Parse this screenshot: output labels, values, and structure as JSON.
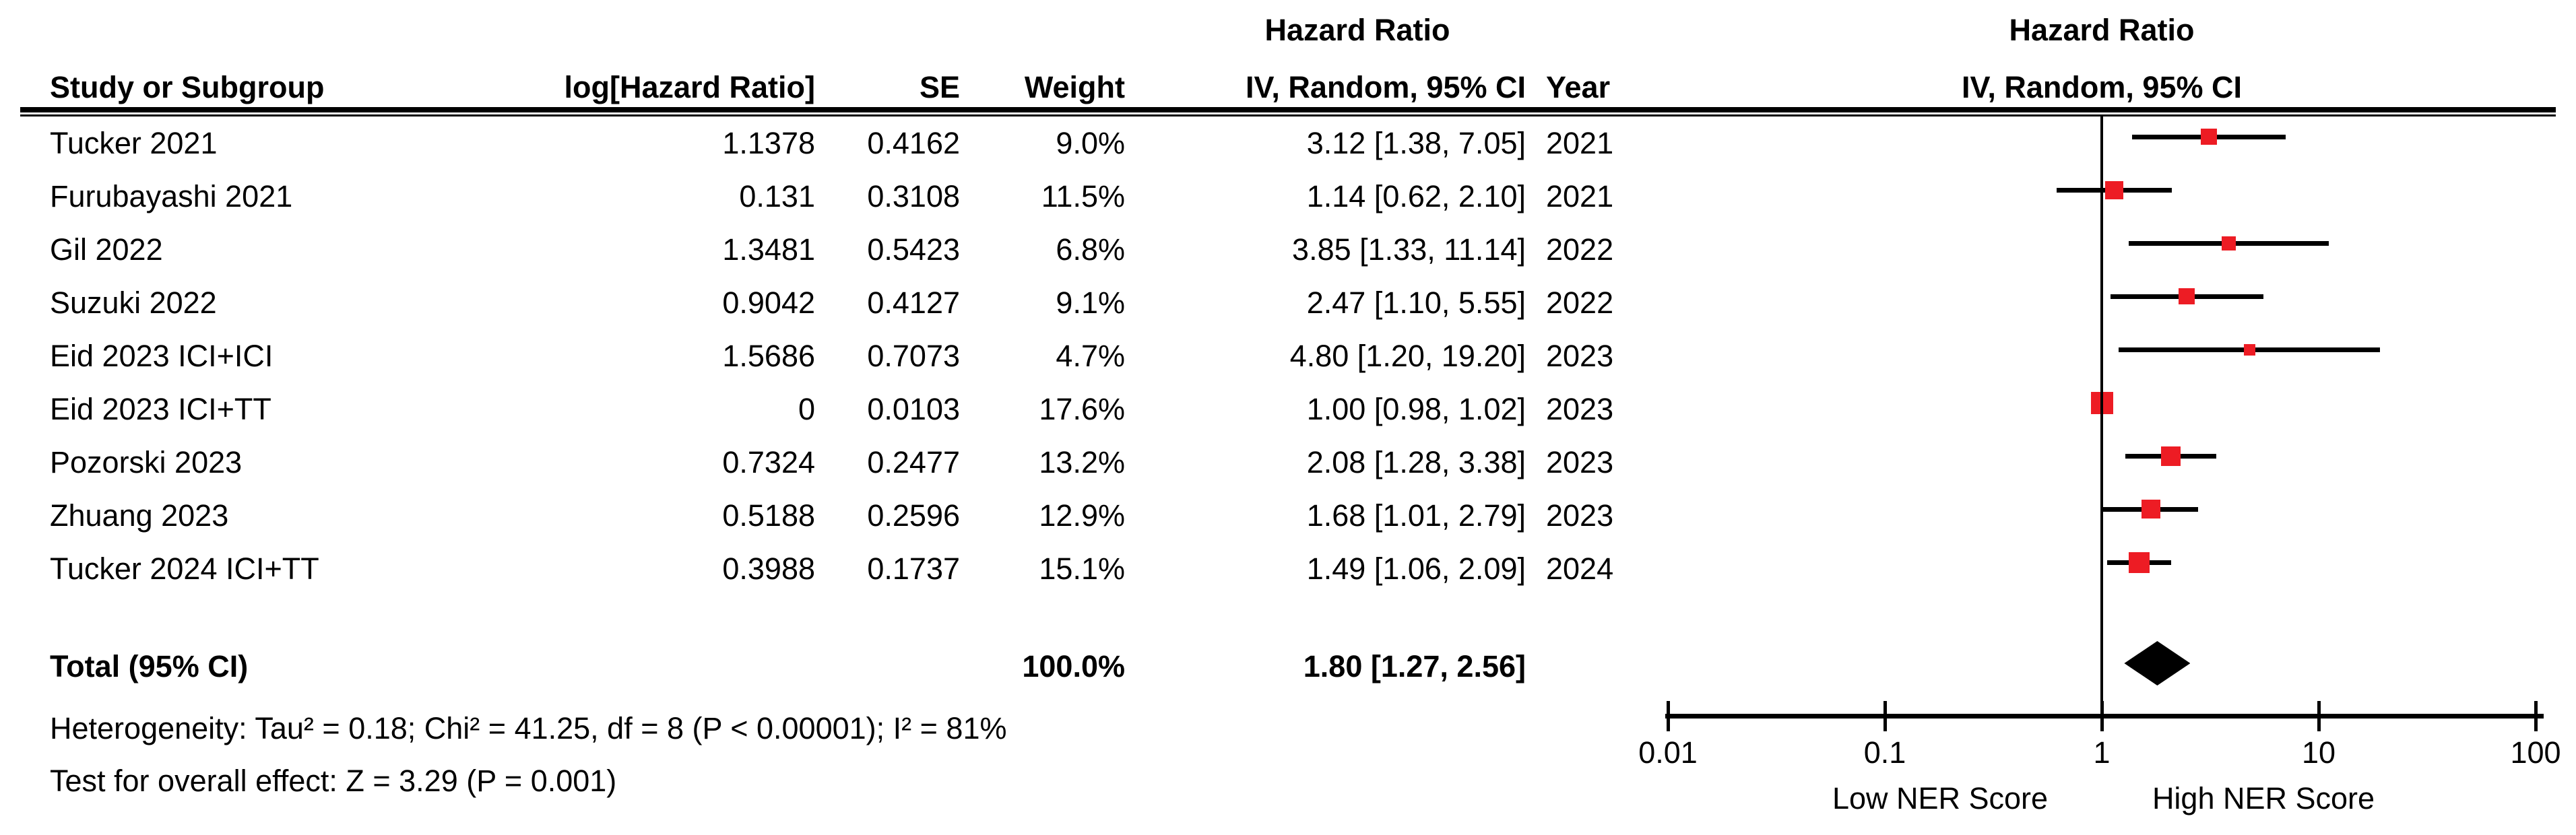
{
  "colors": {
    "marker": "#ED1C24",
    "line": "#000000",
    "diamond": "#000000"
  },
  "header": {
    "effect_title_left": "Hazard Ratio",
    "effect_title_right": "Hazard Ratio",
    "col_study": "Study or Subgroup",
    "col_log_hr": "log[Hazard Ratio]",
    "col_se": "SE",
    "col_weight": "Weight",
    "col_ci": "IV, Random, 95% CI",
    "col_year": "Year",
    "col_ci_right": "IV, Random, 95% CI"
  },
  "total": {
    "label": "Total (95% CI)",
    "weight": "100.0%",
    "ci_text": "1.80 [1.27, 2.56]",
    "hr": 1.8,
    "ci_low": 1.27,
    "ci_high": 2.56
  },
  "footer": {
    "heterogeneity": "Heterogeneity: Tau² = 0.18; Chi² = 41.25, df = 8 (P < 0.00001); I² = 81%",
    "overall_effect": "Test for overall effect: Z = 3.29 (P = 0.001)"
  },
  "axis": {
    "left_label": "Low NER Score",
    "right_label": "High NER Score"
  },
  "chart_data": {
    "type": "forest",
    "title": "Hazard Ratio",
    "method": "IV, Random, 95% CI",
    "xscale": "log10",
    "xlim": [
      0.01,
      100
    ],
    "x_ticks": [
      "0.01",
      "0.1",
      "1",
      "10",
      "100"
    ],
    "axis_labels": {
      "left": "Low NER Score",
      "right": "High NER Score"
    },
    "studies": [
      {
        "name": "Tucker 2021",
        "log_hr": "1.1378",
        "se": "0.4162",
        "weight": "9.0%",
        "ci_text": "3.12 [1.38, 7.05]",
        "year": "2021",
        "hr": 3.12,
        "ci_low": 1.38,
        "ci_high": 7.05,
        "weight_pct": 9.0
      },
      {
        "name": "Furubayashi 2021",
        "log_hr": "0.131",
        "se": "0.3108",
        "weight": "11.5%",
        "ci_text": "1.14 [0.62, 2.10]",
        "year": "2021",
        "hr": 1.14,
        "ci_low": 0.62,
        "ci_high": 2.1,
        "weight_pct": 11.5
      },
      {
        "name": "Gil 2022",
        "log_hr": "1.3481",
        "se": "0.5423",
        "weight": "6.8%",
        "ci_text": "3.85 [1.33, 11.14]",
        "year": "2022",
        "hr": 3.85,
        "ci_low": 1.33,
        "ci_high": 11.14,
        "weight_pct": 6.8
      },
      {
        "name": "Suzuki 2022",
        "log_hr": "0.9042",
        "se": "0.4127",
        "weight": "9.1%",
        "ci_text": "2.47 [1.10, 5.55]",
        "year": "2022",
        "hr": 2.47,
        "ci_low": 1.1,
        "ci_high": 5.55,
        "weight_pct": 9.1
      },
      {
        "name": "Eid 2023 ICI+ICI",
        "log_hr": "1.5686",
        "se": "0.7073",
        "weight": "4.7%",
        "ci_text": "4.80 [1.20, 19.20]",
        "year": "2023",
        "hr": 4.8,
        "ci_low": 1.2,
        "ci_high": 19.2,
        "weight_pct": 4.7
      },
      {
        "name": "Eid 2023 ICI+TT",
        "log_hr": "0",
        "se": "0.0103",
        "weight": "17.6%",
        "ci_text": "1.00 [0.98, 1.02]",
        "year": "2023",
        "hr": 1.0,
        "ci_low": 0.98,
        "ci_high": 1.02,
        "weight_pct": 17.6
      },
      {
        "name": "Pozorski 2023",
        "log_hr": "0.7324",
        "se": "0.2477",
        "weight": "13.2%",
        "ci_text": "2.08 [1.28, 3.38]",
        "year": "2023",
        "hr": 2.08,
        "ci_low": 1.28,
        "ci_high": 3.38,
        "weight_pct": 13.2
      },
      {
        "name": "Zhuang 2023",
        "log_hr": "0.5188",
        "se": "0.2596",
        "weight": "12.9%",
        "ci_text": "1.68 [1.01, 2.79]",
        "year": "2023",
        "hr": 1.68,
        "ci_low": 1.01,
        "ci_high": 2.79,
        "weight_pct": 12.9
      },
      {
        "name": "Tucker 2024 ICI+TT",
        "log_hr": "0.3988",
        "se": "0.1737",
        "weight": "15.1%",
        "ci_text": "1.49 [1.06, 2.09]",
        "year": "2024",
        "hr": 1.49,
        "ci_low": 1.06,
        "ci_high": 2.09,
        "weight_pct": 15.1
      }
    ],
    "total": {
      "label": "Total (95% CI)",
      "hr": 1.8,
      "ci_low": 1.27,
      "ci_high": 2.56,
      "weight_pct": 100.0
    }
  }
}
